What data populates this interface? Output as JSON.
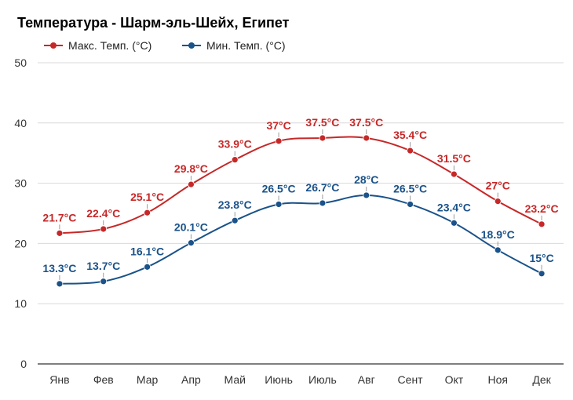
{
  "chart_data": {
    "type": "line",
    "title": "Температура - Шарм-эль-Шейх, Египет",
    "xlabel": "",
    "ylabel": "",
    "ylim": [
      0,
      50
    ],
    "yticks": [
      "0",
      "10",
      "20",
      "30",
      "40",
      "50"
    ],
    "grid": true,
    "legend_position": "top-left",
    "categories": [
      "Янв",
      "Фев",
      "Мар",
      "Апр",
      "Май",
      "Июнь",
      "Июль",
      "Авг",
      "Сент",
      "Окт",
      "Ноя",
      "Дек"
    ],
    "series": [
      {
        "name": "Макс. Темп. (°C)",
        "color": "#c62828",
        "values": [
          21.7,
          22.4,
          25.1,
          29.8,
          33.9,
          37,
          37.5,
          37.5,
          35.4,
          31.5,
          27,
          23.2
        ],
        "labels": [
          "21.7°C",
          "22.4°C",
          "25.1°C",
          "29.8°C",
          "33.9°C",
          "37°C",
          "37.5°C",
          "37.5°C",
          "35.4°C",
          "31.5°C",
          "27°C",
          "23.2°C"
        ]
      },
      {
        "name": "Мин. Темп. (°C)",
        "color": "#1a5289",
        "values": [
          13.3,
          13.7,
          16.1,
          20.1,
          23.8,
          26.5,
          26.7,
          28,
          26.5,
          23.4,
          18.9,
          15
        ],
        "labels": [
          "13.3°C",
          "13.7°C",
          "16.1°C",
          "20.1°C",
          "23.8°C",
          "26.5°C",
          "26.7°C",
          "28°C",
          "26.5°C",
          "23.4°C",
          "18.9°C",
          "15°C"
        ]
      }
    ]
  }
}
